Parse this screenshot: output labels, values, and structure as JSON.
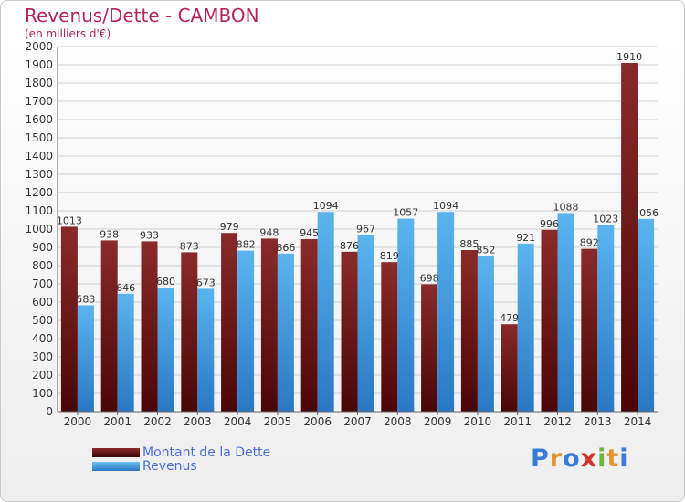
{
  "chart_data": {
    "type": "bar",
    "title": "Revenus/Dette - CAMBON",
    "subtitle": "(en milliers d'€)",
    "categories": [
      "2000",
      "2001",
      "2002",
      "2003",
      "2004",
      "2005",
      "2006",
      "2007",
      "2008",
      "2009",
      "2010",
      "2011",
      "2012",
      "2013",
      "2014"
    ],
    "series": [
      {
        "name": "Montant de la Dette",
        "color": "#7a1c1c",
        "values": [
          1013,
          938,
          933,
          873,
          979,
          948,
          945,
          876,
          819,
          698,
          885,
          479,
          996,
          892,
          1910
        ]
      },
      {
        "name": "Revenus",
        "color": "#4aa8e8",
        "values": [
          583,
          646,
          680,
          673,
          882,
          866,
          1094,
          967,
          1057,
          1094,
          852,
          921,
          1088,
          1023,
          1056
        ]
      }
    ],
    "ylim": [
      0,
      2000
    ],
    "ytick_step": 100,
    "grid": true,
    "legend_position": "bottom-left"
  },
  "logo": {
    "letters": [
      {
        "ch": "P",
        "color": "#3b7bd6"
      },
      {
        "ch": "r",
        "color": "#e2962a"
      },
      {
        "ch": "o",
        "color": "#3b7bd6"
      },
      {
        "ch": "x",
        "color": "#d62f2f"
      },
      {
        "ch": "i",
        "color": "#6bb53d"
      },
      {
        "ch": "t",
        "color": "#e2962a"
      },
      {
        "ch": "i",
        "color": "#3b7bd6"
      }
    ]
  }
}
